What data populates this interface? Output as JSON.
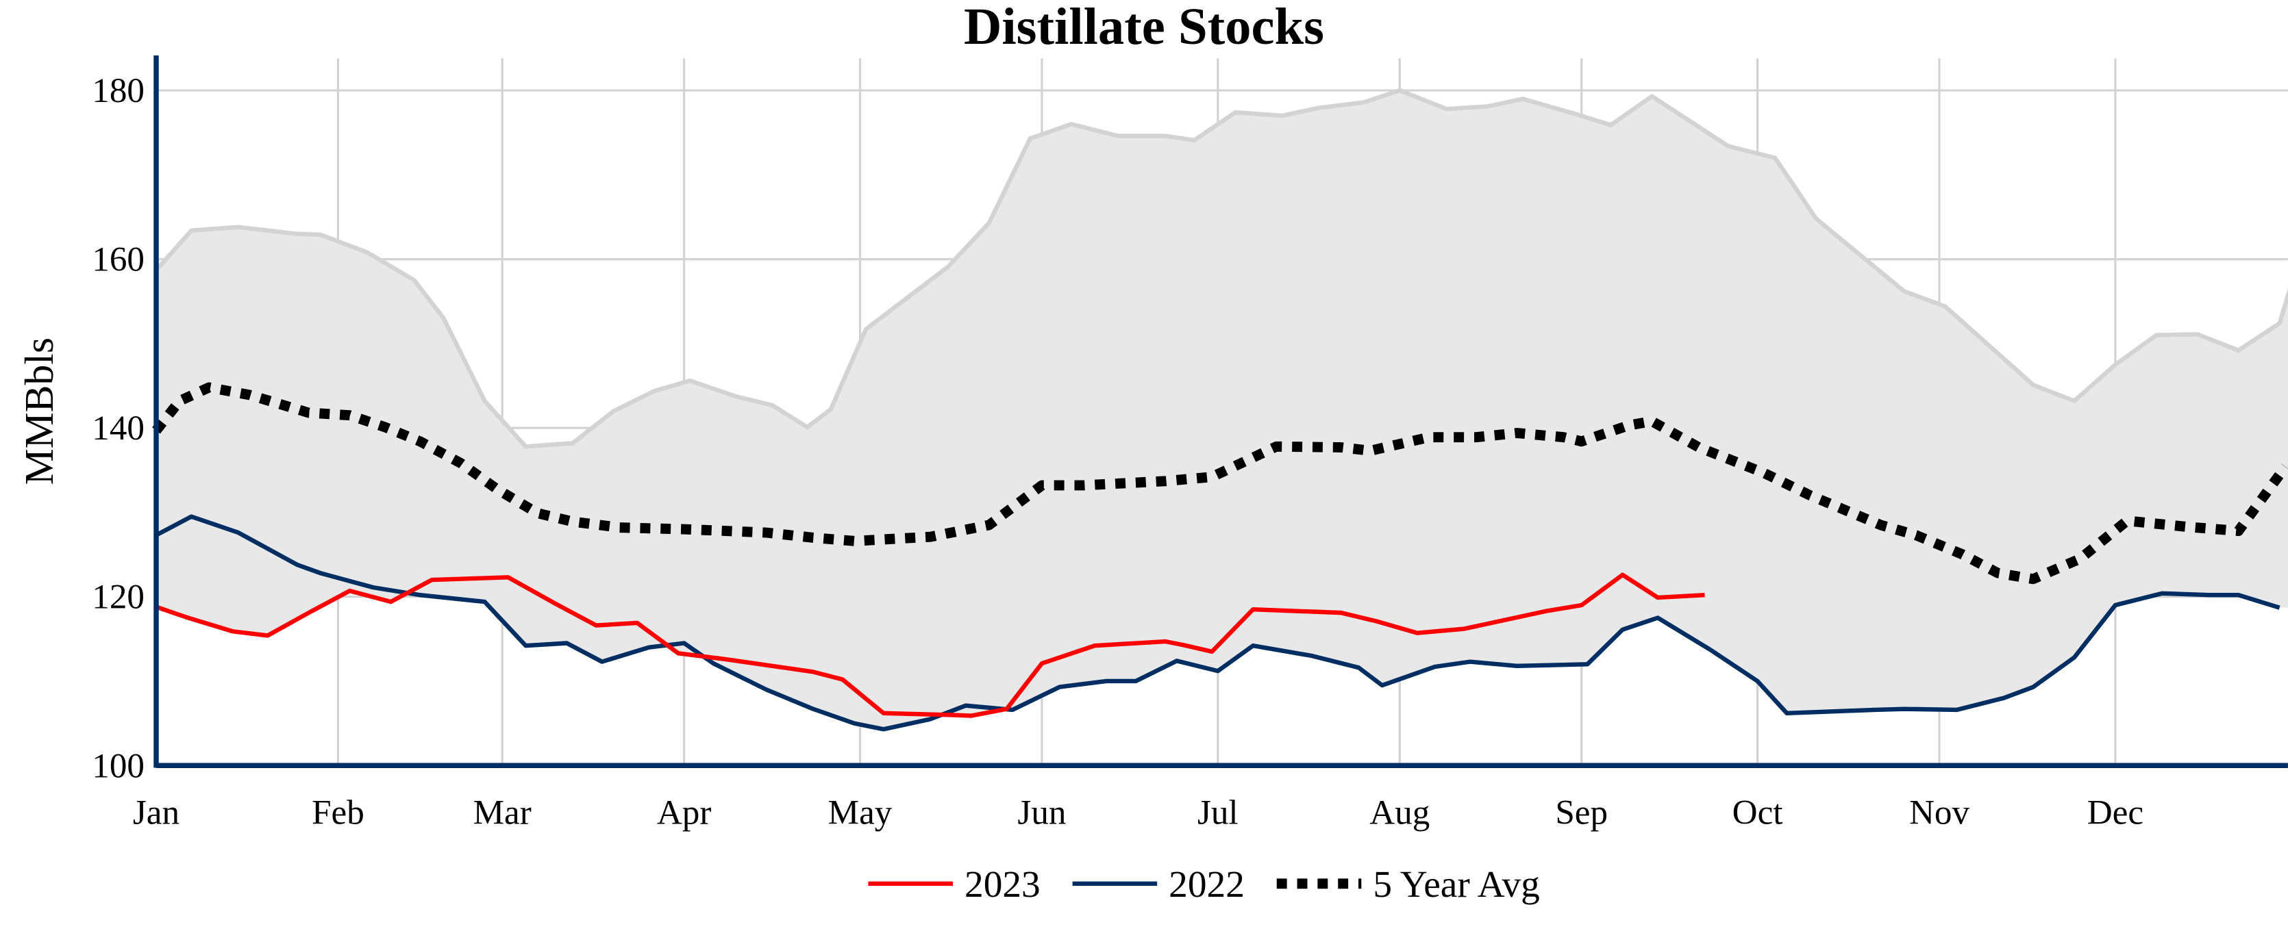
{
  "chart_data": {
    "type": "line",
    "title": "Distillate Stocks",
    "xlabel": "",
    "ylabel": "MMBbls",
    "ylim": [
      100,
      184
    ],
    "yticks": [
      100,
      120,
      140,
      160,
      180
    ],
    "xticks": [
      {
        "date": "01-01",
        "label": "Jan"
      },
      {
        "date": "02-01",
        "label": "Feb"
      },
      {
        "date": "03-01",
        "label": "Mar"
      },
      {
        "date": "04-01",
        "label": "Apr"
      },
      {
        "date": "05-01",
        "label": "May"
      },
      {
        "date": "06-01",
        "label": "Jun"
      },
      {
        "date": "07-01",
        "label": "Jul"
      },
      {
        "date": "08-01",
        "label": "Aug"
      },
      {
        "date": "09-01",
        "label": "Sep"
      },
      {
        "date": "10-01",
        "label": "Oct"
      },
      {
        "date": "11-01",
        "label": "Nov"
      },
      {
        "date": "12-01",
        "label": "Dec"
      }
    ],
    "grid": true,
    "legend_position": "bottom",
    "colors": {
      "s2023": "#ff0000",
      "s2022": "#002d62",
      "avg": "#000000",
      "range_fill": "#e8e8e8",
      "range_line": "#d3d3d3",
      "axis": "#002d62",
      "grid": "#d3d3d3"
    },
    "series": [
      {
        "name": "2023",
        "color": "#ff0000",
        "style": "solid",
        "x": [
          "01-01",
          "01-06",
          "01-14",
          "01-20",
          "01-27",
          "02-03",
          "02-10",
          "02-17",
          "03-02",
          "03-10",
          "03-17",
          "03-24",
          "03-31",
          "04-08",
          "04-15",
          "04-23",
          "04-28",
          "05-05",
          "05-16",
          "05-20",
          "05-26",
          "06-01",
          "06-10",
          "06-22",
          "06-25",
          "06-30",
          "07-07",
          "07-22",
          "07-28",
          "08-04",
          "08-12",
          "08-26",
          "09-01",
          "09-08",
          "09-14",
          "09-22"
        ],
        "y": [
          118.8,
          117.6,
          115.9,
          115.4,
          118.1,
          120.7,
          119.4,
          122.0,
          122.3,
          119.2,
          116.6,
          116.9,
          113.3,
          112.6,
          111.9,
          111.1,
          110.2,
          106.2,
          106.0,
          105.9,
          106.7,
          112.1,
          114.2,
          114.7,
          114.3,
          113.5,
          118.5,
          118.1,
          117.1,
          115.7,
          116.2,
          118.3,
          119.0,
          122.6,
          119.9,
          120.2
        ]
      },
      {
        "name": "2022",
        "color": "#002d62",
        "style": "solid",
        "x": [
          "01-01",
          "01-07",
          "01-15",
          "01-25",
          "01-29",
          "02-07",
          "02-15",
          "02-26",
          "03-05",
          "03-12",
          "03-18",
          "03-26",
          "04-01",
          "04-06",
          "04-15",
          "04-23",
          "04-30",
          "05-05",
          "05-13",
          "05-19",
          "05-27",
          "06-04",
          "06-12",
          "06-17",
          "06-24",
          "07-01",
          "07-07",
          "07-17",
          "07-25",
          "07-29",
          "08-07",
          "08-13",
          "08-21",
          "09-02",
          "09-08",
          "09-14",
          "09-23",
          "10-01",
          "10-06",
          "10-21",
          "10-26",
          "11-04",
          "11-12",
          "11-17",
          "11-24",
          "12-01",
          "12-09",
          "12-17",
          "12-22",
          "12-29"
        ],
        "y": [
          127.3,
          129.5,
          127.6,
          123.8,
          122.8,
          121.1,
          120.2,
          119.4,
          114.2,
          114.5,
          112.3,
          114.0,
          114.5,
          112.1,
          109.0,
          106.7,
          105.0,
          104.3,
          105.5,
          107.1,
          106.6,
          109.3,
          110.0,
          110.0,
          112.4,
          111.2,
          114.2,
          113.0,
          111.6,
          109.5,
          111.7,
          112.3,
          111.8,
          112.0,
          116.1,
          117.5,
          113.7,
          110.0,
          106.2,
          106.6,
          106.7,
          106.6,
          108.0,
          109.3,
          112.8,
          119.0,
          120.4,
          120.2,
          120.2,
          118.7
        ]
      },
      {
        "name": "5 Year Avg",
        "color": "#000000",
        "style": "dotted",
        "x": [
          "01-01",
          "01-05",
          "01-10",
          "01-17",
          "01-27",
          "02-03",
          "02-09",
          "02-15",
          "02-22",
          "02-28",
          "03-07",
          "03-13",
          "03-21",
          "04-01",
          "04-15",
          "04-23",
          "04-30",
          "05-13",
          "05-23",
          "06-01",
          "06-08",
          "06-22",
          "06-30",
          "07-11",
          "07-22",
          "07-27",
          "08-06",
          "08-14",
          "08-21",
          "08-29",
          "09-01",
          "09-09",
          "09-13",
          "09-21",
          "10-02",
          "10-10",
          "10-22",
          "10-28",
          "11-05",
          "11-11",
          "11-17",
          "11-25",
          "12-03",
          "12-13",
          "12-22",
          "12-30"
        ],
        "y": [
          139.7,
          143.2,
          144.8,
          143.9,
          141.8,
          141.5,
          140.1,
          138.4,
          135.8,
          132.8,
          129.9,
          128.9,
          128.2,
          128.0,
          127.6,
          127.0,
          126.6,
          127.1,
          128.5,
          133.2,
          133.2,
          133.7,
          134.2,
          137.8,
          137.7,
          137.3,
          138.9,
          138.9,
          139.4,
          138.9,
          138.4,
          140.3,
          140.8,
          137.7,
          134.7,
          132.0,
          128.5,
          127.3,
          125.0,
          122.8,
          122.1,
          124.5,
          129.0,
          128.3,
          127.8,
          135.4
        ]
      }
    ],
    "range_max": {
      "x": [
        "01-01",
        "01-07",
        "01-15",
        "01-25",
        "01-29",
        "02-06",
        "02-14",
        "02-19",
        "02-26",
        "03-05",
        "03-13",
        "03-20",
        "03-27",
        "04-02",
        "04-10",
        "04-16",
        "04-22",
        "04-26",
        "05-02",
        "05-16",
        "05-23",
        "05-30",
        "06-06",
        "06-14",
        "06-22",
        "06-27",
        "07-04",
        "07-12",
        "07-18",
        "07-26",
        "08-01",
        "08-09",
        "08-16",
        "08-22",
        "08-30",
        "09-06",
        "09-13",
        "09-26",
        "10-04",
        "10-11",
        "10-26",
        "11-02",
        "11-17",
        "11-24",
        "12-01",
        "12-08",
        "12-15",
        "12-22",
        "12-29",
        "12-31"
      ],
      "y": [
        158.7,
        163.4,
        163.8,
        163.0,
        162.9,
        160.8,
        157.5,
        153.0,
        143.2,
        137.8,
        138.2,
        142.0,
        144.4,
        145.6,
        143.7,
        142.7,
        140.1,
        142.2,
        151.7,
        159.1,
        164.3,
        174.3,
        176.0,
        174.6,
        174.6,
        174.1,
        177.4,
        177.0,
        177.9,
        178.6,
        180.0,
        177.8,
        178.1,
        179.0,
        177.4,
        175.9,
        179.3,
        173.4,
        172.0,
        164.8,
        156.2,
        154.4,
        145.1,
        143.2,
        147.5,
        151.0,
        151.1,
        149.2,
        152.4,
        157.0
      ]
    }
  }
}
